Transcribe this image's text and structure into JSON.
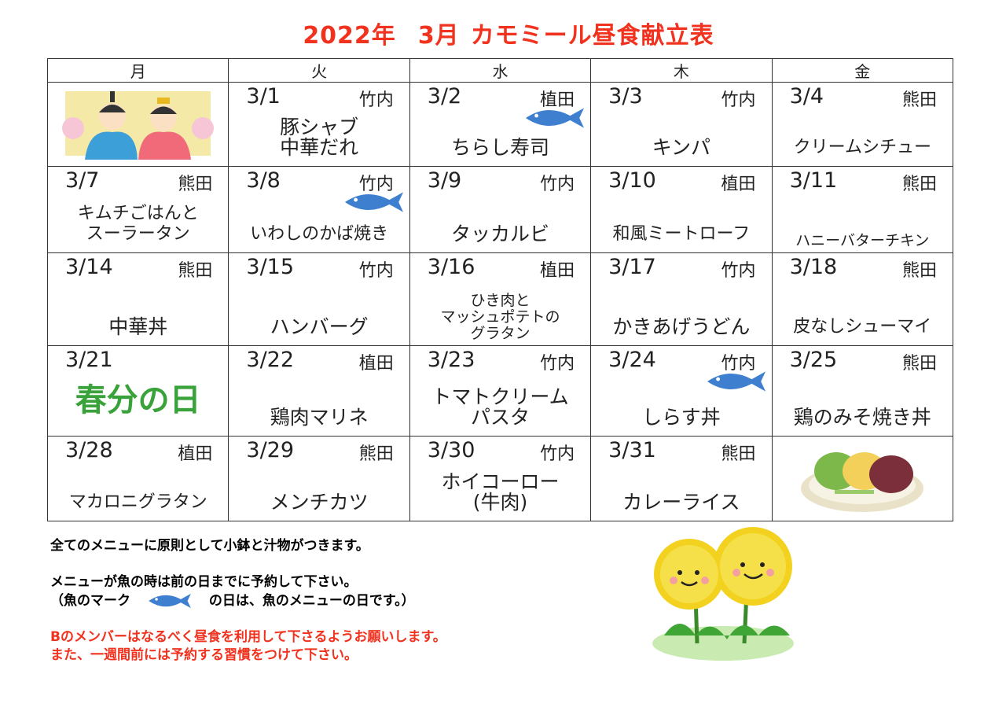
{
  "title": {
    "year": "2022年",
    "month": "3月",
    "name": "カモミール昼食献立表"
  },
  "days": [
    "月",
    "火",
    "水",
    "木",
    "金"
  ],
  "weeks": [
    [
      {
        "image": "hina-dolls"
      },
      {
        "date": "3/1",
        "cook": "竹内",
        "menu": [
          "豚シャブ",
          "中華だれ"
        ]
      },
      {
        "date": "3/2",
        "cook": "植田",
        "menu": [
          "ちらし寿司"
        ],
        "fish": true
      },
      {
        "date": "3/3",
        "cook": "竹内",
        "menu": [
          "キンパ"
        ]
      },
      {
        "date": "3/4",
        "cook": "熊田",
        "menu": [
          "クリームシチュー"
        ],
        "size": "mid"
      }
    ],
    [
      {
        "date": "3/7",
        "cook": "熊田",
        "menu": [
          "キムチごはんと",
          "スーラータン"
        ],
        "size": "mid"
      },
      {
        "date": "3/8",
        "cook": "竹内",
        "menu": [
          "いわしのかば焼き"
        ],
        "fish": true,
        "size": "mid"
      },
      {
        "date": "3/9",
        "cook": "竹内",
        "menu": [
          "タッカルビ"
        ]
      },
      {
        "date": "3/10",
        "cook": "植田",
        "menu": [
          "和風ミートローフ"
        ],
        "size": "mid"
      },
      {
        "date": "3/11",
        "cook": "熊田",
        "menu": [
          "ハニーバターチキン"
        ],
        "size": "small"
      }
    ],
    [
      {
        "date": "3/14",
        "cook": "熊田",
        "menu": [
          "中華丼"
        ]
      },
      {
        "date": "3/15",
        "cook": "竹内",
        "menu": [
          "ハンバーグ"
        ]
      },
      {
        "date": "3/16",
        "cook": "植田",
        "menu": [
          "ひき肉と",
          "マッシュポテトの",
          "グラタン"
        ],
        "size": "small"
      },
      {
        "date": "3/17",
        "cook": "竹内",
        "menu": [
          "かきあげうどん"
        ]
      },
      {
        "date": "3/18",
        "cook": "熊田",
        "menu": [
          "皮なしシューマイ"
        ],
        "size": "mid"
      }
    ],
    [
      {
        "date": "3/21",
        "cook": "",
        "menu": [],
        "holiday": "春分の日"
      },
      {
        "date": "3/22",
        "cook": "植田",
        "menu": [
          "鶏肉マリネ"
        ]
      },
      {
        "date": "3/23",
        "cook": "竹内",
        "menu": [
          "トマトクリーム",
          "パスタ"
        ]
      },
      {
        "date": "3/24",
        "cook": "竹内",
        "menu": [
          "しらす丼"
        ],
        "fish": true
      },
      {
        "date": "3/25",
        "cook": "熊田",
        "menu": [
          "鶏のみそ焼き丼"
        ]
      }
    ],
    [
      {
        "date": "3/28",
        "cook": "植田",
        "menu": [
          "マカロニグラタン"
        ],
        "size": "mid"
      },
      {
        "date": "3/29",
        "cook": "熊田",
        "menu": [
          "メンチカツ"
        ]
      },
      {
        "date": "3/30",
        "cook": "竹内",
        "menu": [
          "ホイコーロー",
          "(牛肉)"
        ]
      },
      {
        "date": "3/31",
        "cook": "熊田",
        "menu": [
          "カレーライス"
        ]
      },
      {
        "image": "ohagi-plate"
      }
    ]
  ],
  "notes": {
    "line1": "全てのメニューに原則として小鉢と汁物がつきます。",
    "line2": "メニューが魚の時は前の日までに予約して下さい。",
    "line3a": "（魚のマーク",
    "line3b": "の日は、魚のメニューの日です。）",
    "line4": "Bのメンバーはなるべく昼食を利用して下さるようお願いします。",
    "line5": "また、一週間前には予約する習慣をつけて下さい。"
  },
  "colors": {
    "title": "#f0321e",
    "fish": "#3f7fd0",
    "holiday": "#3aa23a"
  }
}
